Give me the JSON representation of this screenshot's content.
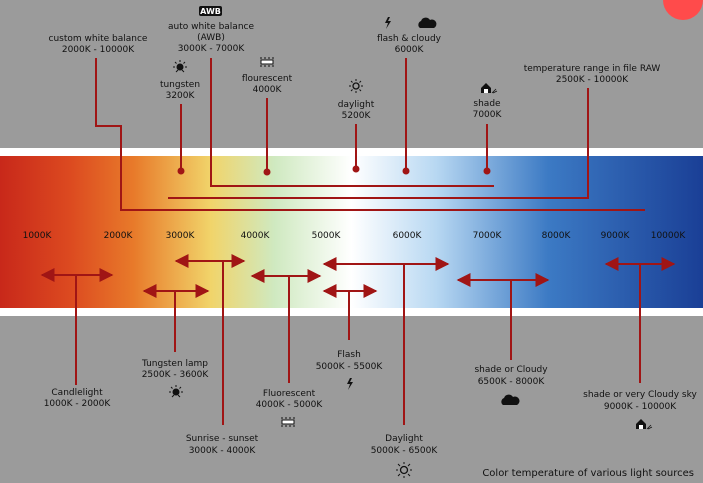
{
  "colors": {
    "background": "#9b9b9b",
    "marker": "#a01515",
    "spectrum": [
      "#c8281a",
      "#e87a2a",
      "#f1d46a",
      "#cfe9c0",
      "#ffffff",
      "#b8d8f2",
      "#3c7ac4",
      "#1a3f96"
    ]
  },
  "top_labels": {
    "custom_wb": {
      "line1": "custom white balance",
      "line2": "2000K - 10000K"
    },
    "auto_wb_badge": "AWB",
    "auto_wb": {
      "line1": "auto white balance",
      "line2": "(AWB)",
      "line3": "3000K - 7000K"
    },
    "tungsten": {
      "line1": "tungsten",
      "line2": "3200K",
      "icon": "tungsten-bulb-icon"
    },
    "fluorescent": {
      "line1": "flourescent",
      "line2": "4000K",
      "icon": "fluorescent-tube-icon"
    },
    "daylight": {
      "line1": "daylight",
      "line2": "5200K",
      "icon": "sun-icon"
    },
    "flash_cloudy": {
      "line1": "flash & cloudy",
      "line2": "6000K",
      "icon": "flash-cloud-icon"
    },
    "shade": {
      "line1": "shade",
      "line2": "7000K",
      "icon": "shade-house-icon"
    },
    "raw_range": {
      "line1": "temperature range in file RAW",
      "line2": "2500K - 10000K"
    }
  },
  "ticks": [
    "1000K",
    "2000K",
    "3000K",
    "4000K",
    "5000K",
    "6000K",
    "7000K",
    "8000K",
    "9000K",
    "10000K"
  ],
  "bottom_labels": {
    "candlelight": {
      "line1": "Candlelight",
      "line2": "1000K - 2000K"
    },
    "tungsten_lamp": {
      "line1": "Tungsten lamp",
      "line2": "2500K - 3600K"
    },
    "sunrise": {
      "line1": "Sunrise - sunset",
      "line2": "3000K - 4000K"
    },
    "fluorescent": {
      "line1": "Fluorescent",
      "line2": "4000K - 5000K"
    },
    "flash": {
      "line1": "Flash",
      "line2": "5000K - 5500K"
    },
    "daylight": {
      "line1": "Daylight",
      "line2": "5000K - 6500K"
    },
    "shade_cloudy": {
      "line1": "shade or  Cloudy",
      "line2": "6500K - 8000K"
    },
    "shade_very_cloudy": {
      "line1": "shade or very Cloudy sky",
      "line2": "9000K - 10000K"
    }
  },
  "caption": "Color temperature of various light sources"
}
